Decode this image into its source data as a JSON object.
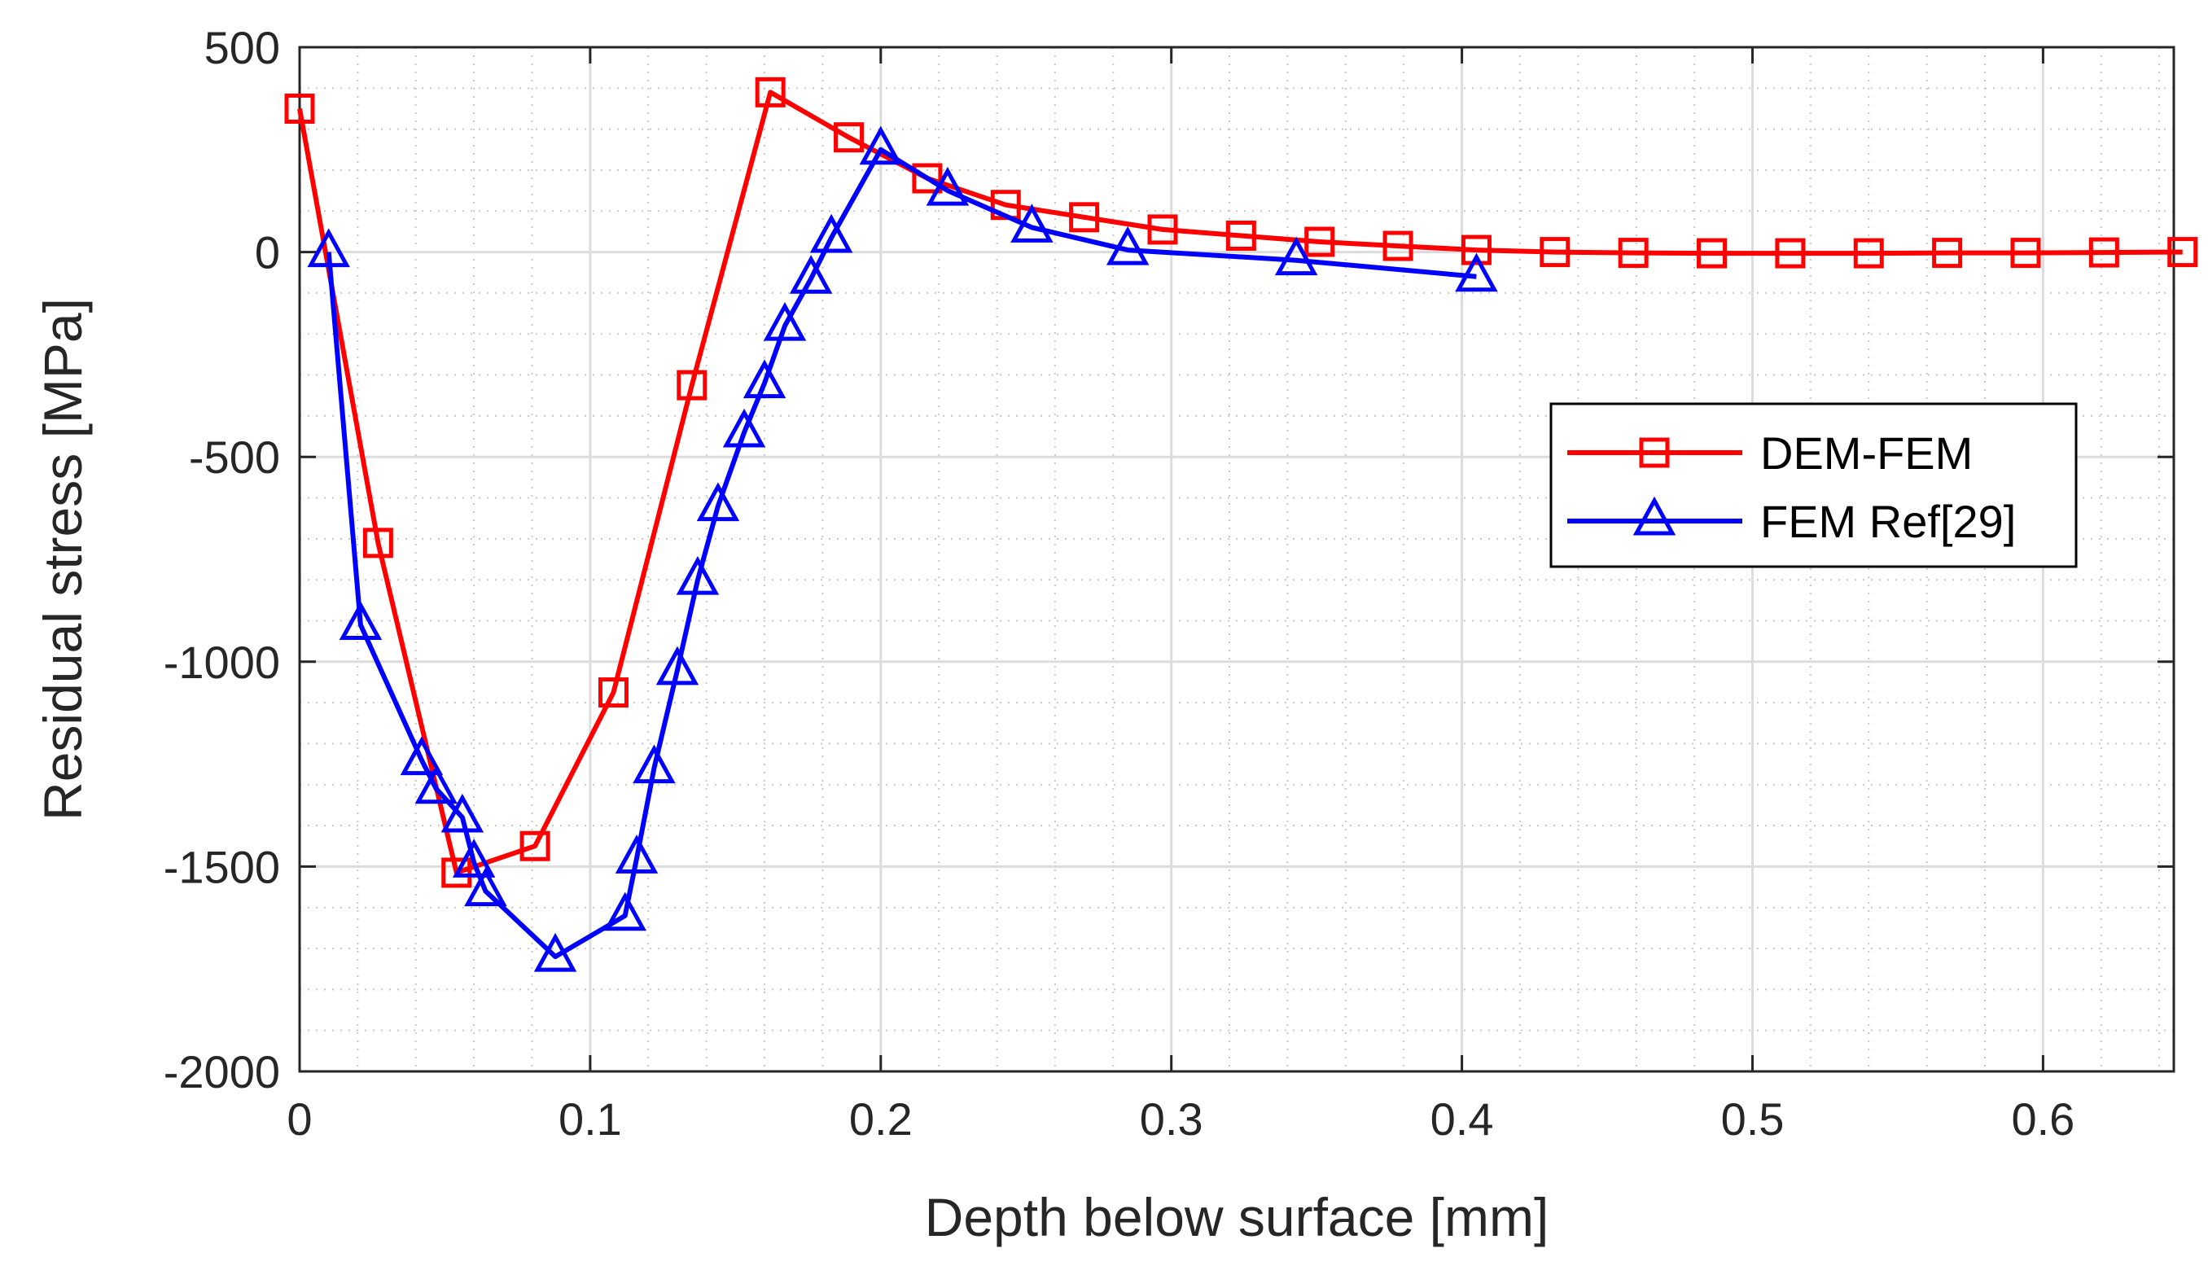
{
  "chart_data": {
    "type": "line",
    "title": "",
    "xlabel": "Depth below surface [mm]",
    "ylabel": "Residual stress [MPa]",
    "xlim": [
      0,
      0.645
    ],
    "ylim": [
      -2000,
      500
    ],
    "xticks": [
      0,
      0.1,
      0.2,
      0.3,
      0.4,
      0.5,
      0.6
    ],
    "xtick_labels": [
      "0",
      "0.1",
      "0.2",
      "0.3",
      "0.4",
      "0.5",
      "0.6"
    ],
    "yticks": [
      500,
      0,
      -500,
      -1000,
      -1500,
      -2000
    ],
    "ytick_labels": [
      "500",
      "0",
      "-500",
      "-1000",
      "-1500",
      "-2000"
    ],
    "grid": "major and minor",
    "legend_position": "right",
    "series": [
      {
        "name": "DEM-FEM",
        "color": "#ff0000",
        "marker": "square",
        "x": [
          0.0,
          0.027,
          0.054,
          0.081,
          0.108,
          0.135,
          0.162,
          0.189,
          0.216,
          0.243,
          0.27,
          0.297,
          0.324,
          0.351,
          0.378,
          0.405,
          0.432,
          0.459,
          0.486,
          0.513,
          0.54,
          0.567,
          0.594,
          0.621,
          0.648
        ],
        "values": [
          350,
          -710,
          -1515,
          -1450,
          -1075,
          -325,
          390,
          280,
          180,
          115,
          85,
          55,
          40,
          25,
          15,
          5,
          0,
          -2,
          -3,
          -3,
          -3,
          -2,
          -2,
          -1,
          0
        ]
      },
      {
        "name": "FEM Ref[29]",
        "color": "#0000ff",
        "marker": "triangle",
        "x": [
          0.01,
          0.021,
          0.042,
          0.047,
          0.056,
          0.06,
          0.064,
          0.088,
          0.112,
          0.116,
          0.122,
          0.13,
          0.137,
          0.144,
          0.153,
          0.16,
          0.167,
          0.176,
          0.183,
          0.2,
          0.223,
          0.252,
          0.285,
          0.343,
          0.405
        ],
        "values": [
          0,
          -910,
          -1240,
          -1310,
          -1380,
          -1490,
          -1560,
          -1720,
          -1620,
          -1480,
          -1260,
          -1020,
          -800,
          -620,
          -440,
          -320,
          -180,
          -65,
          35,
          250,
          150,
          60,
          5,
          -20,
          -60
        ]
      }
    ]
  }
}
